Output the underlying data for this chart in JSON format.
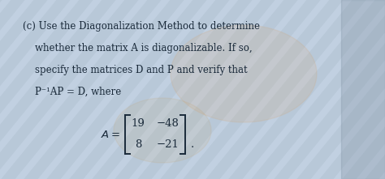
{
  "background_color": "#b8c8d8",
  "text_color": "#1a2a3a",
  "line1": "(c) Use the Diagonalization Method to determine",
  "line2": "    whether the matrix A is diagonalizable. If so,",
  "line3": "    specify the matrices D and P and verify that",
  "line4": "    P⁻¹AP = D, where",
  "matrix_label": "A = ",
  "mat_r1c1": "19",
  "mat_r1c2": "−48",
  "mat_r2c1": "8",
  "mat_r2c2": "−21",
  "period": ".",
  "fontsize": 8.5,
  "mat_fontsize": 9.5,
  "font_family": "DejaVu Serif"
}
